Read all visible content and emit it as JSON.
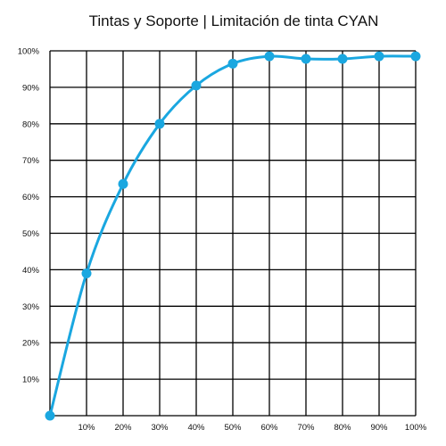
{
  "chart_data": {
    "type": "line",
    "title": "Tintas y Soporte | Limitación de tinta CYAN",
    "xlabel": "",
    "ylabel": "",
    "x_tick_labels": [
      "10%",
      "20%",
      "30%",
      "40%",
      "50%",
      "60%",
      "70%",
      "80%",
      "90%",
      "100%"
    ],
    "y_tick_labels": [
      "10%",
      "20%",
      "30%",
      "40%",
      "50%",
      "60%",
      "70%",
      "80%",
      "90%",
      "100%"
    ],
    "xlim": [
      0,
      100
    ],
    "ylim": [
      0,
      100
    ],
    "grid": true,
    "legend": "none",
    "series": [
      {
        "color": "#1aa7e0",
        "x": [
          0,
          10,
          20,
          30,
          40,
          50,
          60,
          70,
          80,
          90,
          100
        ],
        "y": [
          0,
          39,
          63.5,
          80,
          90.5,
          96.5,
          98.5,
          97.8,
          97.8,
          98.5,
          98.5
        ]
      }
    ]
  }
}
